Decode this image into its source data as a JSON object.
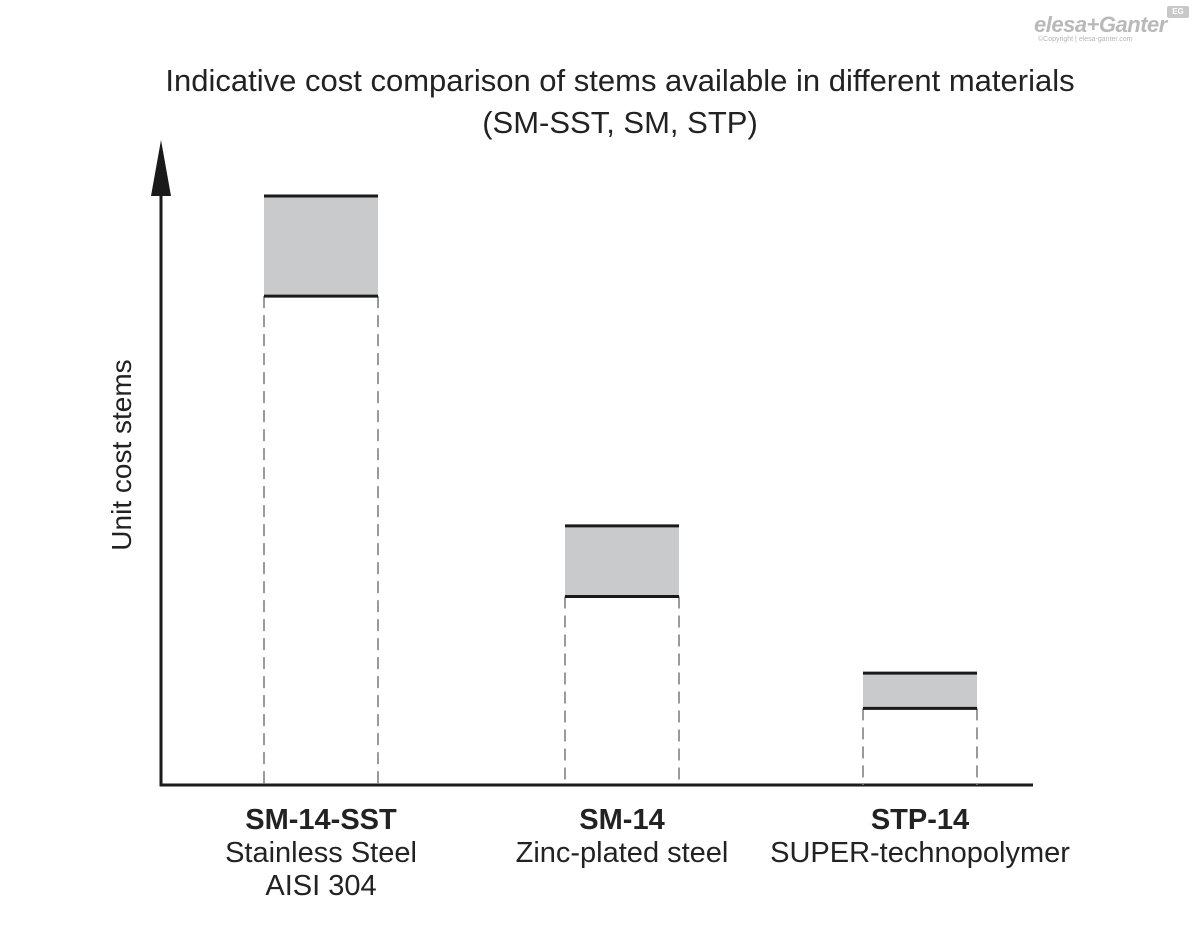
{
  "logo": {
    "word": "elesa+Ganter",
    "badge": "EG",
    "copyright": "©Copyright | elesa-ganter.com"
  },
  "chart_data": {
    "type": "bar",
    "title_lines": [
      "Indicative cost comparison of stems available in different materials",
      "(SM-SST, SM, STP)"
    ],
    "xlabel": "",
    "ylabel": "Unit cost stems",
    "ylim": [
      0,
      100
    ],
    "grid": false,
    "legend": "none",
    "categories": [
      {
        "code": "SM-14-SST",
        "material_lines": [
          "Stainless Steel",
          "AISI 304"
        ],
        "low": 83,
        "high": 100
      },
      {
        "code": "SM-14",
        "material_lines": [
          "Zinc-plated steel"
        ],
        "low": 32,
        "high": 44
      },
      {
        "code": "STP-14",
        "material_lines": [
          "SUPER-technopolymer"
        ],
        "low": 13,
        "high": 19
      }
    ],
    "colors": {
      "range_fill": "#c9cacb",
      "axis": "#1a1a1a",
      "dashed": "#9a9a9a"
    }
  }
}
